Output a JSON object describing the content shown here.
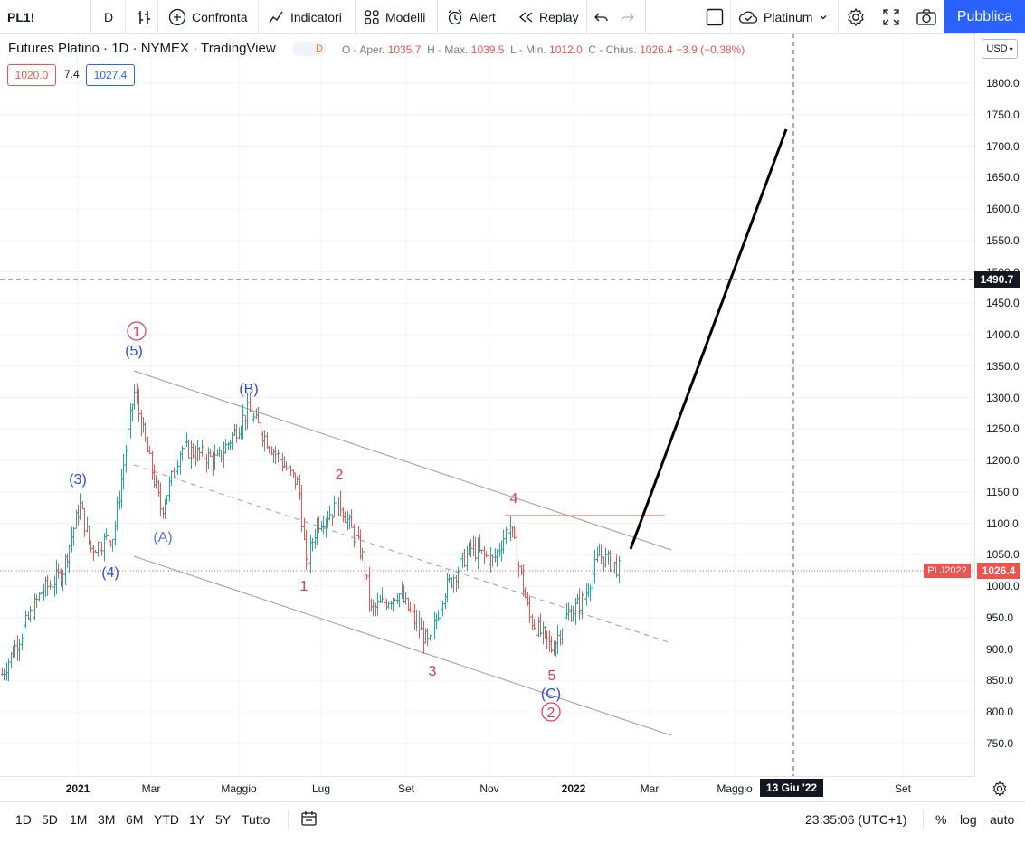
{
  "toolbar": {
    "symbol": "PL1!",
    "interval": "D",
    "compare": "Confronta",
    "indicators": "Indicatori",
    "templates": "Modelli",
    "alert": "Alert",
    "replay": "Replay",
    "plan": "Platinum",
    "publish": "Pubblica"
  },
  "legend": {
    "title": "Futures Platino · 1D · NYMEX · TradingView",
    "badge": "D",
    "open_label": "O - Aper.",
    "open": "1035.7",
    "high_label": "H - Max.",
    "high": "1039.5",
    "low_label": "L - Min.",
    "low": "1012.0",
    "close_label": "C - Chius.",
    "close": "1026.4",
    "change": "−3.9 (−0.38%)",
    "bid": "1020.0",
    "spread": "7.4",
    "ask": "1027.4"
  },
  "currency": "USD",
  "price_scale": [
    "1800.0",
    "1750.0",
    "1700.0",
    "1650.0",
    "1600.0",
    "1550.0",
    "1500.0",
    "1450.0",
    "1400.0",
    "1350.0",
    "1300.0",
    "1250.0",
    "1200.0",
    "1150.0",
    "1100.0",
    "1050.0",
    "1000.0",
    "950.0",
    "900.0",
    "850.0",
    "800.0",
    "750.0"
  ],
  "crosshair_price": "1490.7",
  "current_symbol_label": "PLJ2022",
  "current_price": "1026.4",
  "time_axis": [
    "2021",
    "Mar",
    "Maggio",
    "Lug",
    "Set",
    "Nov",
    "2022",
    "Mar",
    "Maggio",
    "Set"
  ],
  "crosshair_date": "13 Giu '22",
  "wave_labels": {
    "circle1": "1",
    "w5": "(5)",
    "wB": "(B)",
    "w3": "(3)",
    "wA": "(A)",
    "w4": "(4)",
    "r1": "1",
    "r2": "2",
    "r3": "3",
    "r4": "4",
    "r5": "5",
    "wC": "(C)",
    "circle2": "2"
  },
  "ranges": [
    "1D",
    "5D",
    "1M",
    "3M",
    "6M",
    "YTD",
    "1Y",
    "5Y",
    "Tutto"
  ],
  "clock": "23:35:06 (UTC+1)",
  "scale_opts": {
    "percent": "%",
    "log": "log",
    "auto": "auto"
  },
  "colors": {
    "up": "#26a69a",
    "down": "#ef5350",
    "accent": "#2962ff",
    "wave_blue": "#2a4bd7",
    "wave_red": "#e53950"
  }
}
